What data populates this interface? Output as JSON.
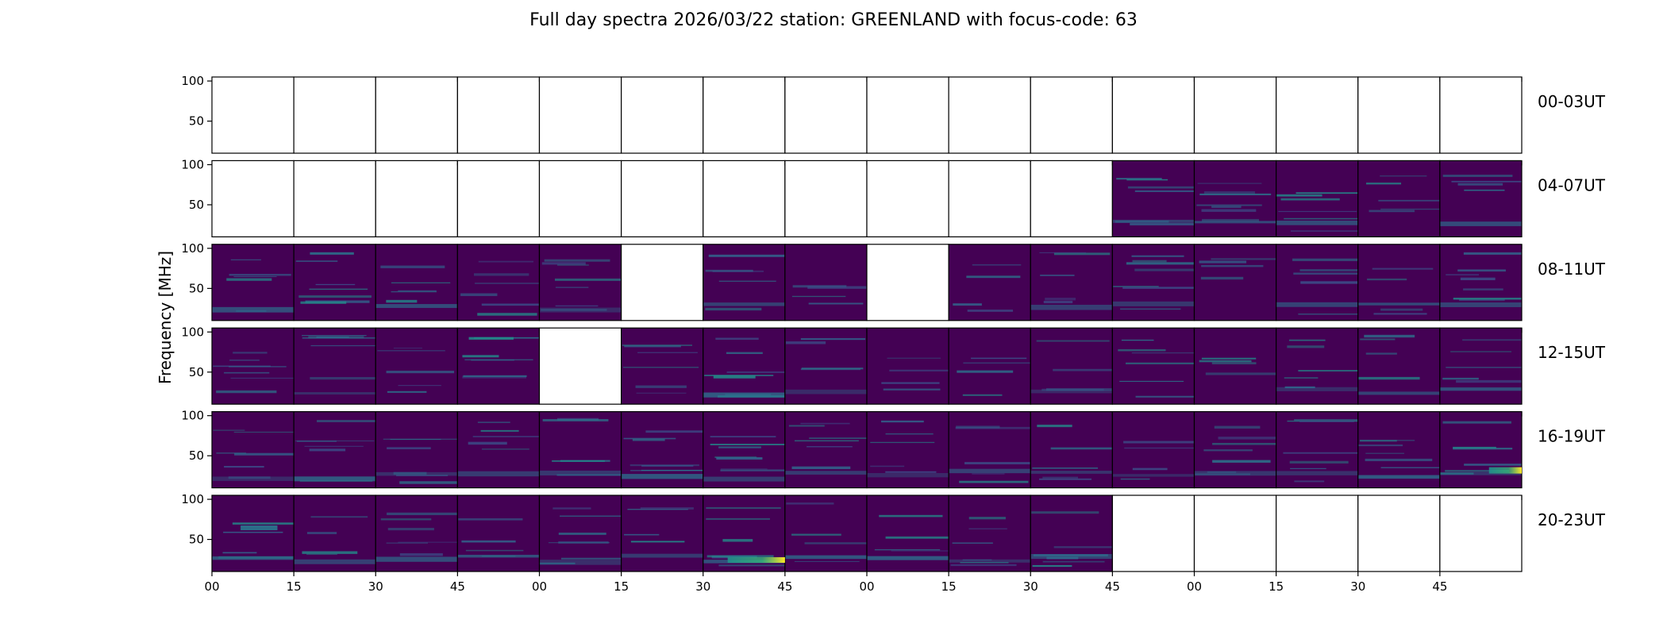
{
  "chart_data": {
    "type": "heatmap",
    "title": "Full day spectra 2026/03/22 station: GREENLAND with focus-code: 63",
    "ylabel": "Frequency [MHz]",
    "xlabel": "",
    "ylim": [
      10,
      105
    ],
    "y_ticks": [
      "100",
      "50"
    ],
    "y_tick_values": [
      100,
      50
    ],
    "x_tick_labels": [
      "00",
      "15",
      "30",
      "45",
      "00",
      "15",
      "30",
      "45",
      "00",
      "15",
      "30",
      "45",
      "00",
      "15",
      "30",
      "45"
    ],
    "colormap": "viridis",
    "colors": {
      "low": "#440154",
      "mid": "#21918c",
      "high": "#fde725",
      "empty": "#ffffff",
      "frame": "#000000"
    },
    "rows": [
      {
        "label": "00-03UT",
        "available": [
          0,
          0,
          0,
          0,
          0,
          0,
          0,
          0,
          0,
          0,
          0,
          0,
          0,
          0,
          0,
          0
        ]
      },
      {
        "label": "04-07UT",
        "available": [
          0,
          0,
          0,
          0,
          0,
          0,
          0,
          0,
          0,
          0,
          0,
          1,
          1,
          1,
          1,
          1
        ]
      },
      {
        "label": "08-11UT",
        "available": [
          1,
          1,
          1,
          1,
          1,
          0,
          1,
          1,
          0,
          1,
          1,
          1,
          1,
          1,
          1,
          1
        ]
      },
      {
        "label": "12-15UT",
        "available": [
          1,
          1,
          1,
          1,
          0,
          1,
          1,
          1,
          1,
          1,
          1,
          1,
          1,
          1,
          1,
          1
        ]
      },
      {
        "label": "16-19UT",
        "available": [
          1,
          1,
          1,
          1,
          1,
          1,
          1,
          1,
          1,
          1,
          1,
          1,
          1,
          1,
          1,
          1
        ]
      },
      {
        "label": "20-23UT",
        "available": [
          1,
          1,
          1,
          1,
          1,
          1,
          1,
          1,
          1,
          1,
          1,
          0,
          0,
          0,
          0,
          0
        ]
      }
    ]
  }
}
